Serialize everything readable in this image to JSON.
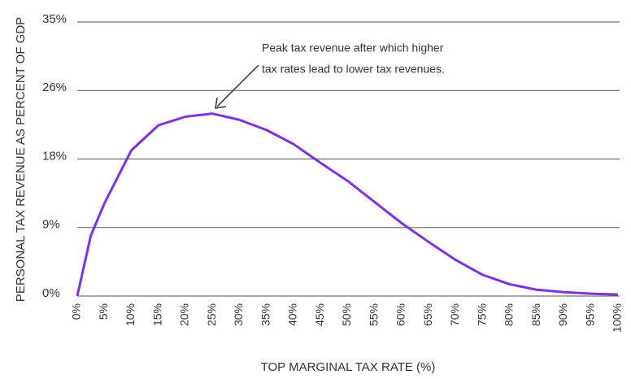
{
  "chart_data": {
    "type": "line",
    "annotation": [
      "Peak tax revenue after which higher",
      "tax rates lead to lower tax revenues."
    ],
    "x_label": "TOP MARGINAL TAX RATE (%)",
    "y_label": "PERSONAL TAX REVENUE AS PERCENT OF GDP",
    "x": [
      0,
      2.5,
      5,
      10,
      15,
      20,
      25,
      30,
      35,
      40,
      45,
      50,
      55,
      60,
      65,
      70,
      75,
      80,
      85,
      90,
      95,
      100
    ],
    "series": [
      {
        "color": "#7b2ff7",
        "values": [
          0,
          7.7,
          11.8,
          18.6,
          21.8,
          22.9,
          23.3,
          22.5,
          21.2,
          19.4,
          17.0,
          14.7,
          12.0,
          9.3,
          6.9,
          4.6,
          2.7,
          1.5,
          0.8,
          0.5,
          0.3,
          0.2
        ]
      }
    ],
    "xlim": [
      0,
      100
    ],
    "xticks": [
      {
        "value": 0,
        "label": "0%"
      },
      {
        "value": 5,
        "label": "5%"
      },
      {
        "value": 10,
        "label": "10%"
      },
      {
        "value": 15,
        "label": "15%"
      },
      {
        "value": 20,
        "label": "20%"
      },
      {
        "value": 25,
        "label": "25%"
      },
      {
        "value": 30,
        "label": "30%"
      },
      {
        "value": 35,
        "label": "35%"
      },
      {
        "value": 40,
        "label": "40%"
      },
      {
        "value": 45,
        "label": "45%"
      },
      {
        "value": 50,
        "label": "50%"
      },
      {
        "value": 55,
        "label": "55%"
      },
      {
        "value": 60,
        "label": "60%"
      },
      {
        "value": 65,
        "label": "65%"
      },
      {
        "value": 70,
        "label": "70%"
      },
      {
        "value": 75,
        "label": "75%"
      },
      {
        "value": 80,
        "label": "80%"
      },
      {
        "value": 85,
        "label": "85%"
      },
      {
        "value": 90,
        "label": "90%"
      },
      {
        "value": 95,
        "label": "95%"
      },
      {
        "value": 100,
        "label": "100%"
      }
    ],
    "ylim": [
      0,
      35
    ],
    "yticks": [
      {
        "value": 0,
        "label": "0%"
      },
      {
        "value": 8.75,
        "label": "9%"
      },
      {
        "value": 17.5,
        "label": "18%"
      },
      {
        "value": 26.25,
        "label": "26%"
      },
      {
        "value": 35,
        "label": "35%"
      }
    ],
    "grid": true
  }
}
